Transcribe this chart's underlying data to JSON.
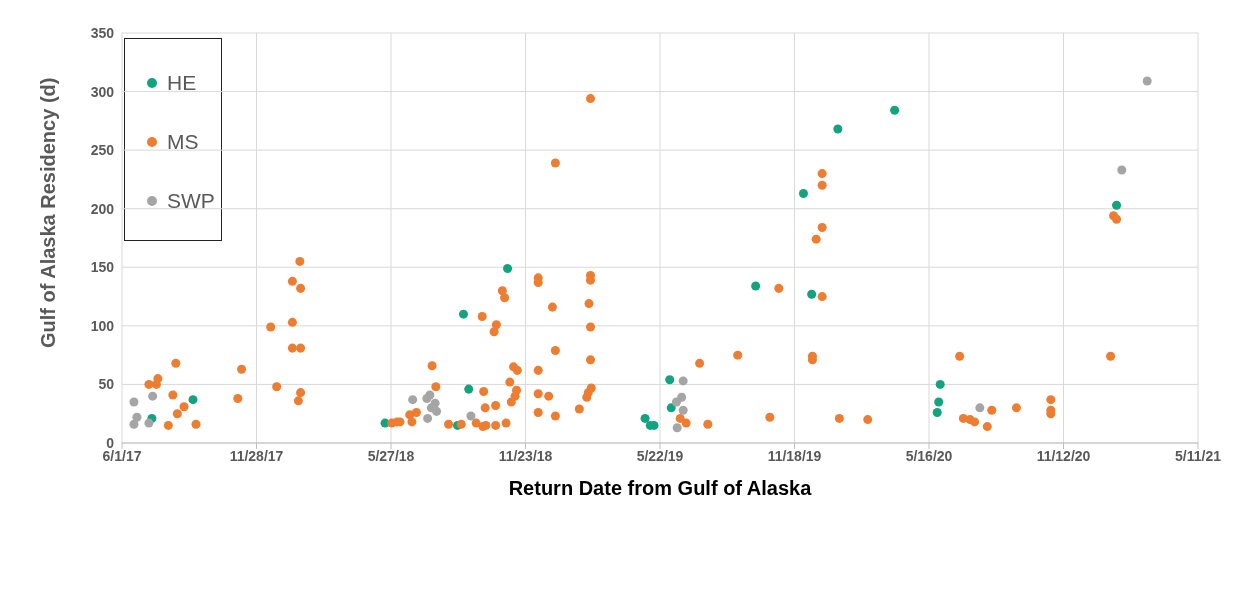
{
  "chart_data": {
    "type": "scatter",
    "xlabel": "Return Date from Gulf of Alaska",
    "ylabel": "Gulf of Alaska Residency (d)",
    "xlim": [
      "2017-06-01",
      "2021-05-11"
    ],
    "xticks": [
      {
        "value": "2017-06-01",
        "label": "6/1/17"
      },
      {
        "value": "2017-11-28",
        "label": "11/28/17"
      },
      {
        "value": "2018-05-27",
        "label": "5/27/18"
      },
      {
        "value": "2018-11-23",
        "label": "11/23/18"
      },
      {
        "value": "2019-05-22",
        "label": "5/22/19"
      },
      {
        "value": "2019-11-18",
        "label": "11/18/19"
      },
      {
        "value": "2020-05-16",
        "label": "5/16/20"
      },
      {
        "value": "2020-11-12",
        "label": "11/12/20"
      },
      {
        "value": "2021-05-11",
        "label": "5/11/21"
      }
    ],
    "ylim": [
      0,
      350
    ],
    "yticks": [
      0,
      50,
      100,
      150,
      200,
      250,
      300,
      350
    ],
    "grid": true,
    "legend": "top left",
    "marker": "circle",
    "series": [
      {
        "name": "HE",
        "color": "#14a37f",
        "x": [
          "2017-07-11",
          "2017-09-04",
          "2018-05-19",
          "2018-08-24",
          "2018-09-01",
          "2018-09-08",
          "2018-10-30",
          "2019-05-02",
          "2019-05-09",
          "2019-05-14",
          "2019-06-04",
          "2019-06-06",
          "2019-09-27",
          "2019-11-30",
          "2019-12-11",
          "2020-01-15",
          "2020-03-31",
          "2020-05-27",
          "2020-05-29",
          "2020-05-31",
          "2021-01-22"
        ],
        "values": [
          21,
          37,
          17,
          15,
          110,
          46,
          149,
          21,
          15,
          15,
          54,
          30,
          134,
          213,
          127,
          268,
          284,
          26,
          35,
          50,
          203
        ]
      },
      {
        "name": "MS",
        "color": "#ed7d31",
        "x": [
          "2017-07-07",
          "2017-07-17",
          "2017-07-19",
          "2017-08-12",
          "2017-08-08",
          "2017-08-02",
          "2017-08-14",
          "2017-08-23",
          "2017-09-08",
          "2017-11-03",
          "2017-11-08",
          "2017-12-17",
          "2017-12-25",
          "2018-01-15",
          "2018-01-15",
          "2018-01-15",
          "2018-01-23",
          "2018-01-25",
          "2018-01-26",
          "2018-01-26",
          "2018-01-26",
          "2018-05-28",
          "2018-06-04",
          "2018-06-08",
          "2018-06-21",
          "2018-06-24",
          "2018-06-30",
          "2018-07-21",
          "2018-07-26",
          "2018-08-12",
          "2018-08-29",
          "2018-09-18",
          "2018-09-26",
          "2018-09-27",
          "2018-09-28",
          "2018-09-30",
          "2018-10-01",
          "2018-10-12",
          "2018-10-14",
          "2018-10-14",
          "2018-10-15",
          "2018-10-23",
          "2018-10-26",
          "2018-10-28",
          "2018-11-02",
          "2018-11-04",
          "2018-11-07",
          "2018-11-09",
          "2018-11-11",
          "2018-11-12",
          "2018-12-10",
          "2018-12-10",
          "2018-12-10",
          "2018-12-10",
          "2018-12-10",
          "2018-12-24",
          "2018-12-29",
          "2019-01-02",
          "2019-01-02",
          "2019-01-02",
          "2019-02-03",
          "2019-02-13",
          "2019-02-15",
          "2019-02-16",
          "2019-02-18",
          "2019-02-18",
          "2019-02-18",
          "2019-02-18",
          "2019-02-18",
          "2019-02-19",
          "2019-06-18",
          "2019-06-26",
          "2019-07-14",
          "2019-07-25",
          "2019-09-03",
          "2019-10-16",
          "2019-10-28",
          "2019-12-12",
          "2019-12-12",
          "2019-12-17",
          "2019-12-25",
          "2019-12-25",
          "2019-12-25",
          "2019-12-25",
          "2020-01-17",
          "2020-02-24",
          "2020-06-26",
          "2020-07-01",
          "2020-07-10",
          "2020-07-16",
          "2020-08-02",
          "2020-08-08",
          "2020-09-10",
          "2020-10-26",
          "2020-10-26",
          "2020-10-26",
          "2021-01-14",
          "2021-01-18",
          "2021-01-22"
        ],
        "values": [
          50,
          50,
          55,
          68,
          41,
          15,
          25,
          31,
          16,
          38,
          63,
          99,
          48,
          138,
          103,
          81,
          36,
          155,
          132,
          81,
          43,
          17,
          18,
          18,
          24,
          18,
          26,
          66,
          48,
          16,
          16,
          17,
          108,
          14,
          44,
          30,
          15,
          95,
          32,
          15,
          101,
          130,
          124,
          17,
          52,
          35,
          65,
          40,
          45,
          62,
          141,
          137,
          62,
          42,
          26,
          40,
          116,
          239,
          79,
          23,
          29,
          39,
          43,
          119,
          294,
          143,
          139,
          99,
          71,
          47,
          21,
          17,
          68,
          16,
          75,
          22,
          132,
          74,
          71,
          174,
          230,
          220,
          184,
          125,
          21,
          20,
          74,
          21,
          20,
          18,
          14,
          28,
          30,
          37,
          28,
          25,
          74,
          194,
          191
        ]
      },
      {
        "name": "SWP",
        "color": "#a5a5a5",
        "x": [
          "2017-06-17",
          "2017-06-21",
          "2017-06-17",
          "2017-07-12",
          "2017-07-07",
          "2018-06-25",
          "2018-07-15",
          "2018-07-14",
          "2018-07-18",
          "2018-07-27",
          "2018-07-20",
          "2018-07-25",
          "2018-09-11",
          "2019-06-22",
          "2019-06-20",
          "2019-06-13",
          "2019-06-22",
          "2019-06-14",
          "2020-07-23",
          "2021-01-29",
          "2021-03-04"
        ],
        "values": [
          35,
          22,
          16,
          40,
          17,
          37,
          21,
          38,
          41,
          27,
          30,
          34,
          23,
          53,
          39,
          35,
          28,
          13,
          30,
          233,
          309
        ]
      }
    ]
  }
}
